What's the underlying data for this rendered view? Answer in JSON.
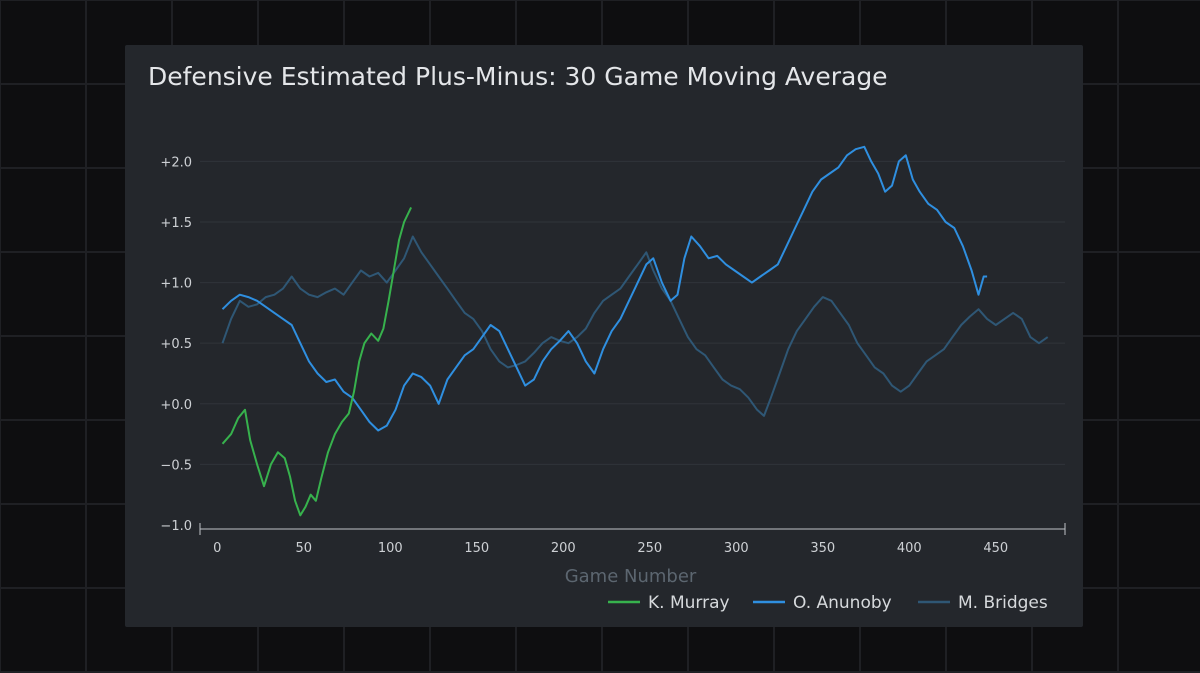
{
  "colors": {
    "page_background": "#0e0e10",
    "card_background": "#24272c",
    "grid": "#30343a",
    "murray": "#37b24d",
    "anunoby": "#2f8fe0",
    "bridges": "#2f5775"
  },
  "chart_data": {
    "type": "line",
    "title": "Defensive Estimated Plus-Minus: 30 Game Moving Average",
    "xlabel": "Game Number",
    "ylabel": "",
    "xlim": [
      -10,
      490
    ],
    "ylim": [
      -1.0,
      2.3
    ],
    "x_ticks": [
      0,
      50,
      100,
      150,
      200,
      250,
      300,
      350,
      400,
      450
    ],
    "y_ticks": [
      {
        "value": 2.0,
        "label": "+2.0"
      },
      {
        "value": 1.5,
        "label": "+1.5"
      },
      {
        "value": 1.0,
        "label": "+1.0"
      },
      {
        "value": 0.5,
        "label": "+0.5"
      },
      {
        "value": 0.0,
        "label": "+0.0"
      },
      {
        "value": -0.5,
        "label": "−0.5"
      },
      {
        "value": -1.0,
        "label": "−1.0"
      }
    ],
    "grid": true,
    "legend_position": "bottom-right",
    "series": [
      {
        "name": "K. Murray",
        "color": "#37b24d",
        "points": [
          [
            3,
            -0.33
          ],
          [
            8,
            -0.25
          ],
          [
            12,
            -0.12
          ],
          [
            16,
            -0.05
          ],
          [
            19,
            -0.3
          ],
          [
            23,
            -0.5
          ],
          [
            27,
            -0.68
          ],
          [
            31,
            -0.5
          ],
          [
            35,
            -0.4
          ],
          [
            39,
            -0.45
          ],
          [
            42,
            -0.6
          ],
          [
            45,
            -0.8
          ],
          [
            48,
            -0.92
          ],
          [
            51,
            -0.85
          ],
          [
            54,
            -0.75
          ],
          [
            57,
            -0.8
          ],
          [
            60,
            -0.62
          ],
          [
            64,
            -0.4
          ],
          [
            68,
            -0.25
          ],
          [
            72,
            -0.15
          ],
          [
            76,
            -0.08
          ],
          [
            79,
            0.1
          ],
          [
            82,
            0.35
          ],
          [
            85,
            0.5
          ],
          [
            89,
            0.58
          ],
          [
            93,
            0.52
          ],
          [
            96,
            0.62
          ],
          [
            99,
            0.85
          ],
          [
            102,
            1.1
          ],
          [
            105,
            1.35
          ],
          [
            108,
            1.5
          ],
          [
            112,
            1.62
          ]
        ]
      },
      {
        "name": "O. Anunoby",
        "color": "#2f8fe0",
        "points": [
          [
            3,
            0.78
          ],
          [
            8,
            0.85
          ],
          [
            13,
            0.9
          ],
          [
            18,
            0.88
          ],
          [
            23,
            0.85
          ],
          [
            28,
            0.8
          ],
          [
            33,
            0.75
          ],
          [
            38,
            0.7
          ],
          [
            43,
            0.65
          ],
          [
            48,
            0.5
          ],
          [
            53,
            0.35
          ],
          [
            58,
            0.25
          ],
          [
            63,
            0.18
          ],
          [
            68,
            0.2
          ],
          [
            73,
            0.1
          ],
          [
            78,
            0.05
          ],
          [
            83,
            -0.05
          ],
          [
            88,
            -0.15
          ],
          [
            93,
            -0.22
          ],
          [
            98,
            -0.18
          ],
          [
            103,
            -0.05
          ],
          [
            108,
            0.15
          ],
          [
            113,
            0.25
          ],
          [
            118,
            0.22
          ],
          [
            123,
            0.15
          ],
          [
            128,
            0.0
          ],
          [
            133,
            0.2
          ],
          [
            138,
            0.3
          ],
          [
            143,
            0.4
          ],
          [
            148,
            0.45
          ],
          [
            153,
            0.55
          ],
          [
            158,
            0.65
          ],
          [
            163,
            0.6
          ],
          [
            168,
            0.45
          ],
          [
            173,
            0.3
          ],
          [
            178,
            0.15
          ],
          [
            183,
            0.2
          ],
          [
            188,
            0.35
          ],
          [
            193,
            0.45
          ],
          [
            198,
            0.52
          ],
          [
            203,
            0.6
          ],
          [
            208,
            0.5
          ],
          [
            213,
            0.35
          ],
          [
            218,
            0.25
          ],
          [
            223,
            0.45
          ],
          [
            228,
            0.6
          ],
          [
            233,
            0.7
          ],
          [
            238,
            0.85
          ],
          [
            243,
            1.0
          ],
          [
            248,
            1.15
          ],
          [
            252,
            1.2
          ],
          [
            257,
            1.0
          ],
          [
            262,
            0.85
          ],
          [
            266,
            0.9
          ],
          [
            270,
            1.2
          ],
          [
            274,
            1.38
          ],
          [
            279,
            1.3
          ],
          [
            284,
            1.2
          ],
          [
            289,
            1.22
          ],
          [
            294,
            1.15
          ],
          [
            299,
            1.1
          ],
          [
            304,
            1.05
          ],
          [
            309,
            1.0
          ],
          [
            314,
            1.05
          ],
          [
            319,
            1.1
          ],
          [
            324,
            1.15
          ],
          [
            329,
            1.3
          ],
          [
            334,
            1.45
          ],
          [
            339,
            1.6
          ],
          [
            344,
            1.75
          ],
          [
            349,
            1.85
          ],
          [
            354,
            1.9
          ],
          [
            359,
            1.95
          ],
          [
            364,
            2.05
          ],
          [
            369,
            2.1
          ],
          [
            374,
            2.12
          ],
          [
            378,
            2.0
          ],
          [
            382,
            1.9
          ],
          [
            386,
            1.75
          ],
          [
            390,
            1.8
          ],
          [
            394,
            2.0
          ],
          [
            398,
            2.05
          ],
          [
            402,
            1.85
          ],
          [
            406,
            1.75
          ],
          [
            411,
            1.65
          ],
          [
            416,
            1.6
          ],
          [
            421,
            1.5
          ],
          [
            426,
            1.45
          ],
          [
            431,
            1.3
          ],
          [
            436,
            1.1
          ],
          [
            440,
            0.9
          ],
          [
            443,
            1.05
          ],
          [
            445,
            1.05
          ]
        ]
      },
      {
        "name": "M. Bridges",
        "color": "#2f5775",
        "points": [
          [
            3,
            0.5
          ],
          [
            8,
            0.7
          ],
          [
            13,
            0.85
          ],
          [
            18,
            0.8
          ],
          [
            23,
            0.82
          ],
          [
            28,
            0.88
          ],
          [
            33,
            0.9
          ],
          [
            38,
            0.95
          ],
          [
            43,
            1.05
          ],
          [
            48,
            0.95
          ],
          [
            53,
            0.9
          ],
          [
            58,
            0.88
          ],
          [
            63,
            0.92
          ],
          [
            68,
            0.95
          ],
          [
            73,
            0.9
          ],
          [
            78,
            1.0
          ],
          [
            83,
            1.1
          ],
          [
            88,
            1.05
          ],
          [
            93,
            1.08
          ],
          [
            98,
            1.0
          ],
          [
            103,
            1.1
          ],
          [
            108,
            1.2
          ],
          [
            113,
            1.38
          ],
          [
            118,
            1.25
          ],
          [
            123,
            1.15
          ],
          [
            128,
            1.05
          ],
          [
            133,
            0.95
          ],
          [
            138,
            0.85
          ],
          [
            143,
            0.75
          ],
          [
            148,
            0.7
          ],
          [
            153,
            0.6
          ],
          [
            158,
            0.45
          ],
          [
            163,
            0.35
          ],
          [
            168,
            0.3
          ],
          [
            173,
            0.32
          ],
          [
            178,
            0.35
          ],
          [
            183,
            0.42
          ],
          [
            188,
            0.5
          ],
          [
            193,
            0.55
          ],
          [
            198,
            0.52
          ],
          [
            203,
            0.5
          ],
          [
            208,
            0.55
          ],
          [
            213,
            0.62
          ],
          [
            218,
            0.75
          ],
          [
            223,
            0.85
          ],
          [
            228,
            0.9
          ],
          [
            233,
            0.95
          ],
          [
            238,
            1.05
          ],
          [
            243,
            1.15
          ],
          [
            248,
            1.25
          ],
          [
            252,
            1.1
          ],
          [
            257,
            0.95
          ],
          [
            262,
            0.85
          ],
          [
            267,
            0.7
          ],
          [
            272,
            0.55
          ],
          [
            277,
            0.45
          ],
          [
            282,
            0.4
          ],
          [
            287,
            0.3
          ],
          [
            292,
            0.2
          ],
          [
            297,
            0.15
          ],
          [
            302,
            0.12
          ],
          [
            307,
            0.05
          ],
          [
            312,
            -0.05
          ],
          [
            316,
            -0.1
          ],
          [
            320,
            0.05
          ],
          [
            325,
            0.25
          ],
          [
            330,
            0.45
          ],
          [
            335,
            0.6
          ],
          [
            340,
            0.7
          ],
          [
            345,
            0.8
          ],
          [
            350,
            0.88
          ],
          [
            355,
            0.85
          ],
          [
            360,
            0.75
          ],
          [
            365,
            0.65
          ],
          [
            370,
            0.5
          ],
          [
            375,
            0.4
          ],
          [
            380,
            0.3
          ],
          [
            385,
            0.25
          ],
          [
            390,
            0.15
          ],
          [
            395,
            0.1
          ],
          [
            400,
            0.15
          ],
          [
            405,
            0.25
          ],
          [
            410,
            0.35
          ],
          [
            415,
            0.4
          ],
          [
            420,
            0.45
          ],
          [
            425,
            0.55
          ],
          [
            430,
            0.65
          ],
          [
            435,
            0.72
          ],
          [
            440,
            0.78
          ],
          [
            445,
            0.7
          ],
          [
            450,
            0.65
          ],
          [
            455,
            0.7
          ],
          [
            460,
            0.75
          ],
          [
            465,
            0.7
          ],
          [
            470,
            0.55
          ],
          [
            475,
            0.5
          ],
          [
            480,
            0.55
          ]
        ]
      }
    ]
  }
}
